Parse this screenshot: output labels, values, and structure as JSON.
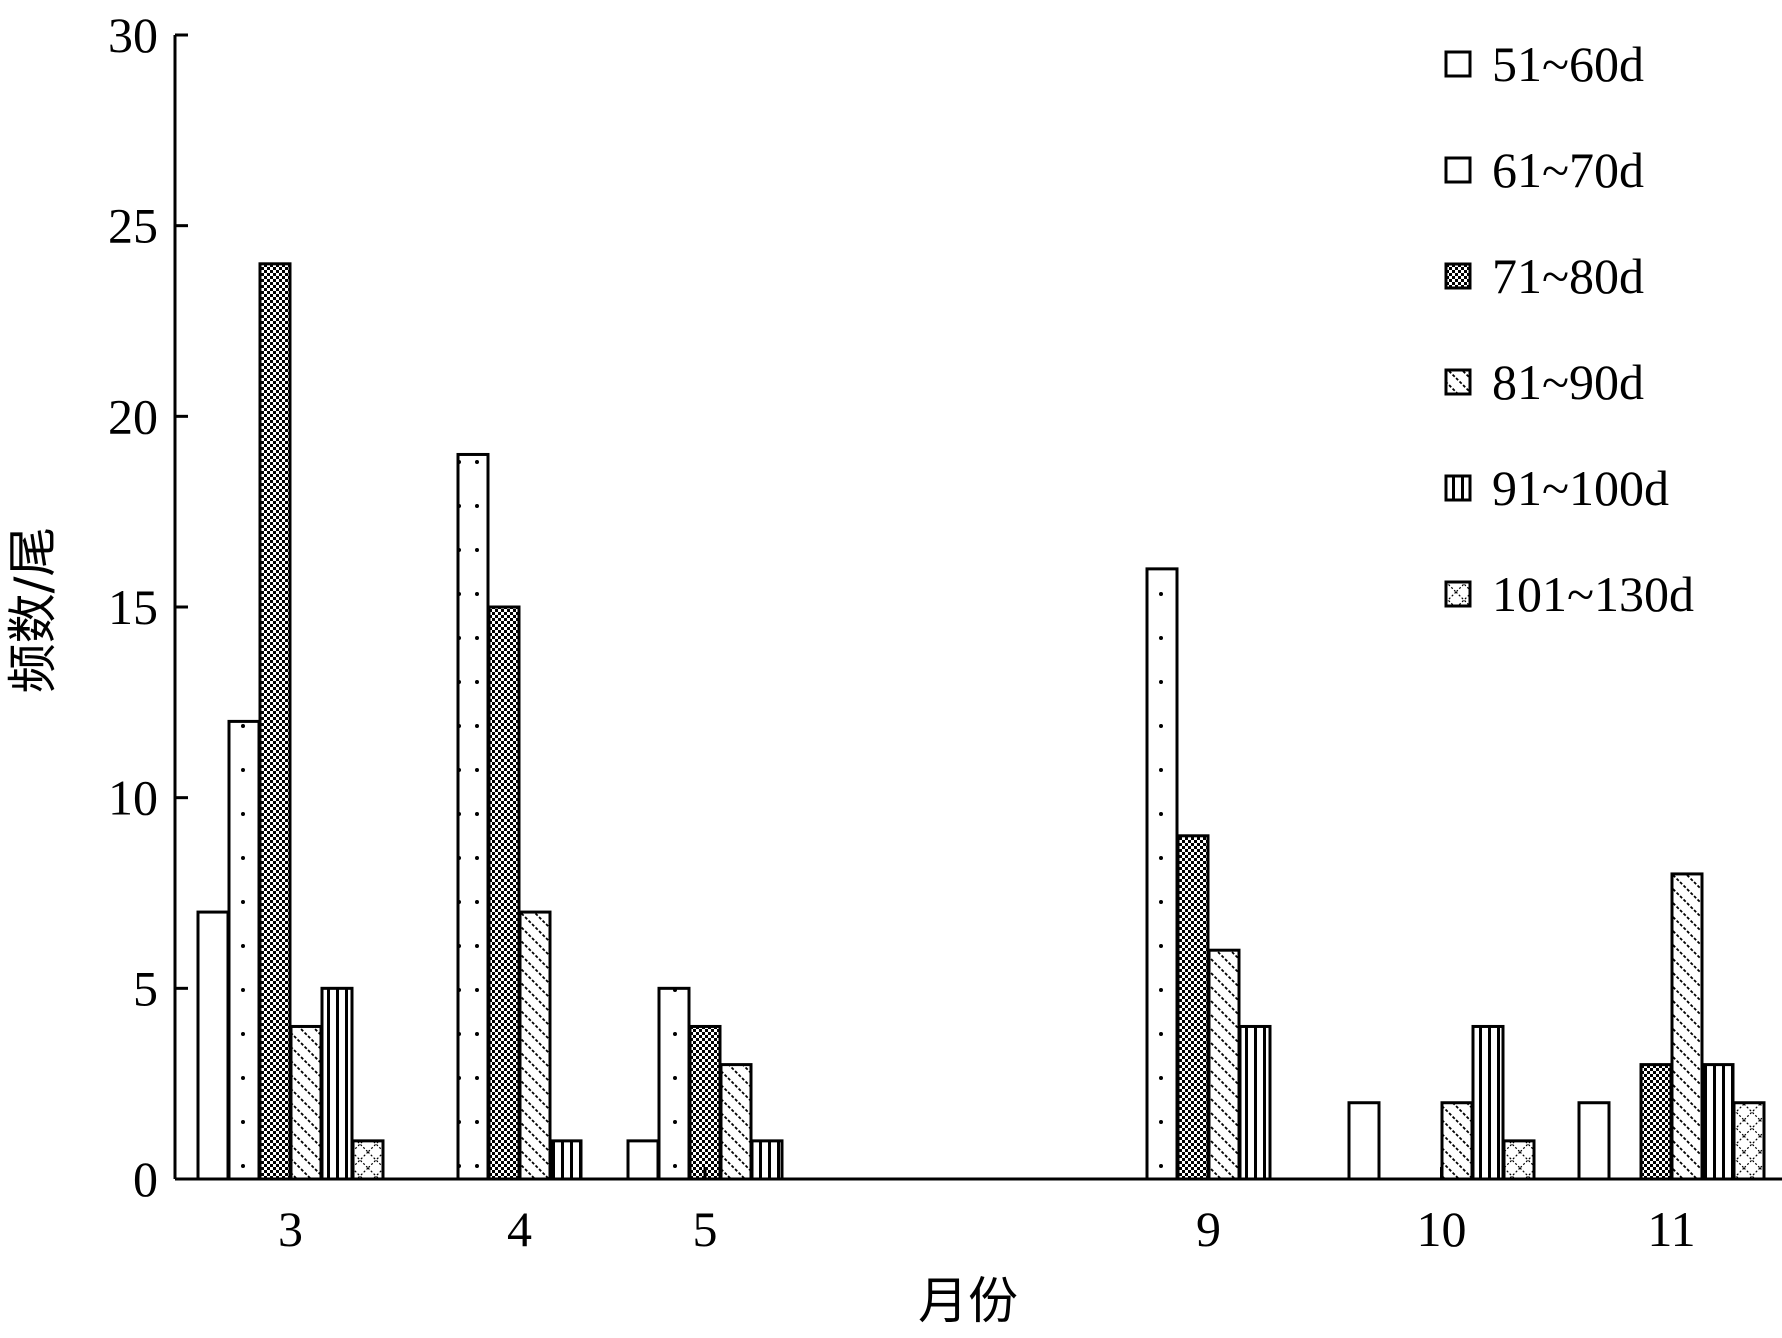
{
  "chart_data": {
    "type": "bar",
    "xlabel": "月份",
    "ylabel": "频数/尾",
    "ylim": [
      0,
      30
    ],
    "yticks": [
      "0",
      "5",
      "10",
      "15",
      "20",
      "25",
      "30"
    ],
    "legend_position": "top-right",
    "grid": false,
    "categories": [
      {
        "label": "3",
        "slots": [
          0,
          1,
          2,
          3,
          4,
          5
        ]
      },
      {
        "label": "4",
        "slots": [
          1,
          2,
          3,
          4
        ]
      },
      {
        "label": "5",
        "slots": [
          0,
          1,
          2,
          3,
          4
        ]
      },
      {
        "label": "9",
        "slots": [
          1,
          2,
          3,
          4
        ]
      },
      {
        "label": "10",
        "slots": [
          0,
          3,
          4,
          5
        ]
      },
      {
        "label": "11",
        "slots": [
          0,
          2,
          3,
          4,
          5
        ]
      }
    ],
    "series": [
      {
        "name": "51~60d",
        "pattern": "blank",
        "values": [
          7,
          null,
          1,
          null,
          2,
          2
        ]
      },
      {
        "name": "61~70d",
        "pattern": "dots",
        "values": [
          12,
          19,
          5,
          16,
          null,
          null
        ]
      },
      {
        "name": "71~80d",
        "pattern": "checker",
        "values": [
          24,
          15,
          4,
          9,
          null,
          3
        ]
      },
      {
        "name": "81~90d",
        "pattern": "diagonal",
        "values": [
          4,
          7,
          3,
          6,
          2,
          8
        ]
      },
      {
        "name": "91~100d",
        "pattern": "vertical",
        "values": [
          5,
          1,
          1,
          4,
          4,
          3
        ]
      },
      {
        "name": "101~130d",
        "pattern": "cross",
        "values": [
          1,
          null,
          null,
          null,
          1,
          2
        ]
      }
    ]
  }
}
